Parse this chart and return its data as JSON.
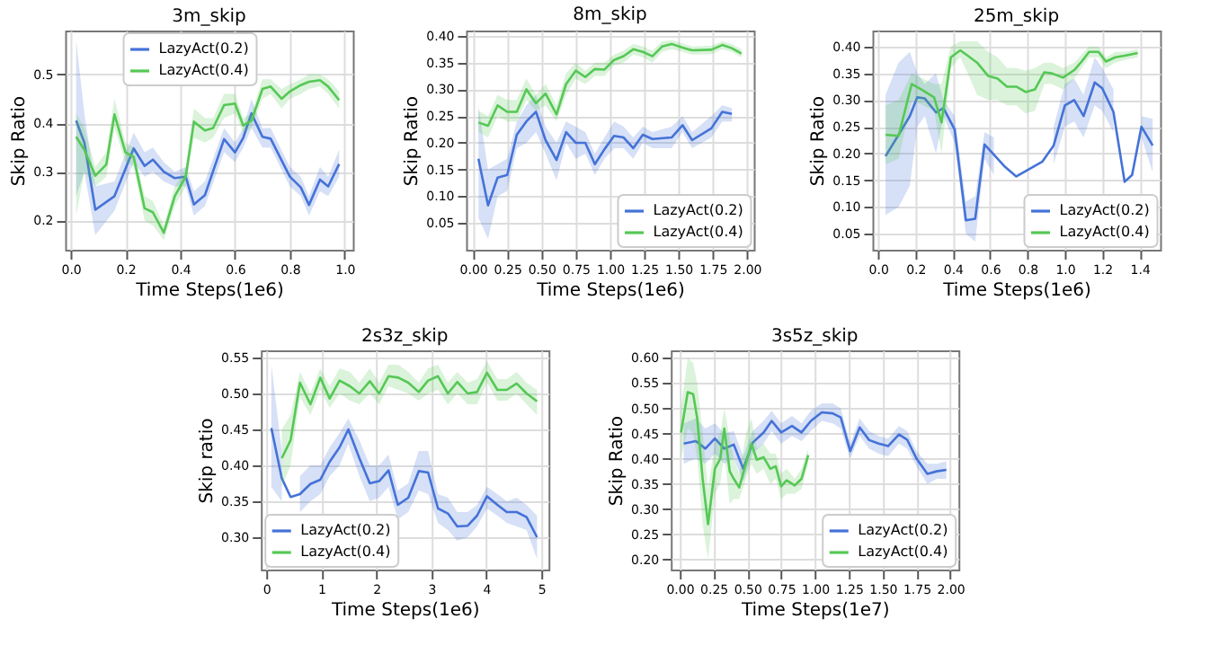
{
  "chart_data": [
    {
      "type": "line",
      "title": "3m_skip",
      "xlabel": "Time Steps(1e6)",
      "ylabel": "Skip Ratio",
      "xlim": [
        -0.02,
        1.03
      ],
      "ylim": [
        0.14,
        0.59
      ],
      "xticks": [
        {
          "value": 0,
          "label": "0.0"
        },
        0.2,
        0.4,
        0.6,
        0.8,
        {
          "value": 1,
          "label": "1.0"
        }
      ],
      "yticks": [
        0.2,
        0.3,
        0.4,
        0.5
      ],
      "grid": true,
      "legend": "top",
      "series": [
        {
          "name": "LazyAct(0.2)",
          "color": "#4472d8",
          "x": [
            0.02,
            0.05,
            0.09,
            0.16,
            0.23,
            0.27,
            0.3,
            0.34,
            0.38,
            0.42,
            0.45,
            0.49,
            0.56,
            0.6,
            0.63,
            0.66,
            0.7,
            0.73,
            0.8,
            0.84,
            0.87,
            0.91,
            0.94,
            0.98
          ],
          "values": [
            0.405,
            0.36,
            0.222,
            0.25,
            0.348,
            0.312,
            0.325,
            0.3,
            0.287,
            0.29,
            0.233,
            0.252,
            0.367,
            0.34,
            0.37,
            0.42,
            0.372,
            0.368,
            0.29,
            0.268,
            0.232,
            0.284,
            0.27,
            0.316
          ],
          "lower": [
            0.25,
            0.3,
            0.17,
            0.22,
            0.32,
            0.29,
            0.3,
            0.28,
            0.27,
            0.27,
            0.21,
            0.23,
            0.34,
            0.32,
            0.35,
            0.39,
            0.35,
            0.35,
            0.27,
            0.25,
            0.21,
            0.26,
            0.25,
            0.29
          ],
          "upper": [
            0.57,
            0.42,
            0.27,
            0.28,
            0.38,
            0.34,
            0.35,
            0.32,
            0.3,
            0.31,
            0.26,
            0.28,
            0.39,
            0.36,
            0.39,
            0.45,
            0.39,
            0.39,
            0.31,
            0.29,
            0.25,
            0.31,
            0.29,
            0.345
          ]
        },
        {
          "name": "LazyAct(0.4)",
          "color": "#55c855",
          "x": [
            0.02,
            0.05,
            0.09,
            0.13,
            0.16,
            0.2,
            0.23,
            0.27,
            0.3,
            0.34,
            0.38,
            0.42,
            0.45,
            0.49,
            0.52,
            0.56,
            0.6,
            0.63,
            0.66,
            0.7,
            0.73,
            0.77,
            0.8,
            0.84,
            0.87,
            0.91,
            0.94,
            0.98
          ],
          "values": [
            0.372,
            0.345,
            0.292,
            0.315,
            0.418,
            0.34,
            0.33,
            0.225,
            0.217,
            0.175,
            0.25,
            0.29,
            0.403,
            0.385,
            0.39,
            0.437,
            0.44,
            0.395,
            0.405,
            0.47,
            0.475,
            0.45,
            0.465,
            0.478,
            0.485,
            0.488,
            0.475,
            0.447
          ],
          "lower": [
            0.21,
            0.3,
            0.27,
            0.29,
            0.39,
            0.32,
            0.31,
            0.2,
            0.19,
            0.16,
            0.23,
            0.27,
            0.37,
            0.36,
            0.37,
            0.41,
            0.42,
            0.38,
            0.39,
            0.45,
            0.46,
            0.43,
            0.45,
            0.46,
            0.47,
            0.475,
            0.46,
            0.43
          ],
          "upper": [
            0.42,
            0.39,
            0.31,
            0.34,
            0.45,
            0.36,
            0.35,
            0.25,
            0.24,
            0.19,
            0.27,
            0.31,
            0.43,
            0.41,
            0.41,
            0.46,
            0.46,
            0.41,
            0.42,
            0.49,
            0.49,
            0.47,
            0.48,
            0.49,
            0.5,
            0.5,
            0.49,
            0.465
          ]
        }
      ]
    },
    {
      "type": "line",
      "title": "8m_skip",
      "xlabel": "Time Steps(1e6)",
      "ylabel": "Skip Ratio",
      "xlim": [
        -0.05,
        2.05
      ],
      "ylim": [
        0.0,
        0.41
      ],
      "xticks": [
        {
          "value": 0,
          "label": "0.00"
        },
        0.25,
        {
          "value": 0.5,
          "label": "0.50"
        },
        0.75,
        {
          "value": 1,
          "label": "1.00"
        },
        1.25,
        {
          "value": 1.5,
          "label": "1.50"
        },
        1.75,
        {
          "value": 2,
          "label": "2.00"
        }
      ],
      "yticks": [
        0.05,
        {
          "value": 0.1,
          "label": "0.10"
        },
        0.15,
        {
          "value": 0.2,
          "label": "0.20"
        },
        0.25,
        {
          "value": 0.3,
          "label": "0.30"
        },
        0.35,
        {
          "value": 0.4,
          "label": "0.40"
        }
      ],
      "grid": true,
      "legend": "bottom right",
      "series": [
        {
          "name": "LazyAct(0.2)",
          "color": "#4472d8",
          "x": [
            0.04,
            0.11,
            0.18,
            0.25,
            0.32,
            0.39,
            0.46,
            0.53,
            0.61,
            0.68,
            0.75,
            0.82,
            0.89,
            0.96,
            1.03,
            1.1,
            1.17,
            1.24,
            1.31,
            1.45,
            1.53,
            1.6,
            1.74,
            1.82,
            1.89
          ],
          "values": [
            0.17,
            0.083,
            0.135,
            0.14,
            0.215,
            0.24,
            0.258,
            0.205,
            0.168,
            0.22,
            0.2,
            0.2,
            0.16,
            0.188,
            0.213,
            0.21,
            0.19,
            0.215,
            0.207,
            0.21,
            0.233,
            0.205,
            0.227,
            0.258,
            0.254
          ],
          "lower": [
            0.06,
            0.02,
            0.1,
            0.11,
            0.19,
            0.2,
            0.22,
            0.18,
            0.13,
            0.2,
            0.17,
            0.18,
            0.14,
            0.17,
            0.19,
            0.19,
            0.17,
            0.2,
            0.19,
            0.19,
            0.22,
            0.19,
            0.21,
            0.24,
            0.24
          ],
          "upper": [
            0.27,
            0.15,
            0.16,
            0.17,
            0.24,
            0.27,
            0.29,
            0.23,
            0.2,
            0.24,
            0.23,
            0.22,
            0.18,
            0.21,
            0.24,
            0.23,
            0.21,
            0.23,
            0.22,
            0.23,
            0.25,
            0.22,
            0.25,
            0.27,
            0.265
          ]
        },
        {
          "name": "LazyAct(0.4)",
          "color": "#55c855",
          "x": [
            0.04,
            0.11,
            0.18,
            0.25,
            0.32,
            0.39,
            0.46,
            0.53,
            0.61,
            0.68,
            0.75,
            0.82,
            0.89,
            0.96,
            1.03,
            1.1,
            1.17,
            1.24,
            1.31,
            1.38,
            1.45,
            1.53,
            1.6,
            1.74,
            1.82,
            1.89,
            1.96
          ],
          "values": [
            0.238,
            0.232,
            0.27,
            0.258,
            0.258,
            0.3,
            0.274,
            0.292,
            0.253,
            0.31,
            0.335,
            0.323,
            0.338,
            0.337,
            0.355,
            0.362,
            0.375,
            0.37,
            0.362,
            0.38,
            0.385,
            0.378,
            0.373,
            0.374,
            0.383,
            0.377,
            0.367
          ],
          "lower": [
            0.22,
            0.21,
            0.25,
            0.24,
            0.24,
            0.28,
            0.26,
            0.27,
            0.24,
            0.29,
            0.32,
            0.31,
            0.325,
            0.325,
            0.345,
            0.35,
            0.365,
            0.36,
            0.35,
            0.37,
            0.375,
            0.37,
            0.365,
            0.366,
            0.375,
            0.37,
            0.36
          ],
          "upper": [
            0.26,
            0.25,
            0.29,
            0.28,
            0.28,
            0.32,
            0.29,
            0.31,
            0.27,
            0.33,
            0.35,
            0.335,
            0.35,
            0.35,
            0.365,
            0.372,
            0.385,
            0.38,
            0.372,
            0.39,
            0.392,
            0.386,
            0.38,
            0.382,
            0.39,
            0.385,
            0.375
          ]
        }
      ]
    },
    {
      "type": "line",
      "title": "25m_skip",
      "xlabel": "Time Steps(1e6)",
      "ylabel": "Skip Ratio",
      "xlim": [
        -0.03,
        1.51
      ],
      "ylim": [
        0.02,
        0.43
      ],
      "xticks": [
        {
          "value": 0,
          "label": "0.0"
        },
        0.2,
        0.4,
        0.6,
        0.8,
        {
          "value": 1,
          "label": "1.0"
        },
        1.2,
        1.4
      ],
      "yticks": [
        0.05,
        {
          "value": 0.1,
          "label": "0.10"
        },
        0.15,
        {
          "value": 0.2,
          "label": "0.20"
        },
        0.25,
        {
          "value": 0.3,
          "label": "0.30"
        },
        0.35,
        {
          "value": 0.4,
          "label": "0.40"
        }
      ],
      "grid": true,
      "legend": "bottom right",
      "series": [
        {
          "name": "LazyAct(0.2)",
          "color": "#4472d8",
          "x": [
            0.04,
            0.11,
            0.17,
            0.21,
            0.25,
            0.31,
            0.35,
            0.41,
            0.47,
            0.52,
            0.57,
            0.62,
            0.68,
            0.74,
            0.88,
            0.94,
            1.0,
            1.05,
            1.1,
            1.16,
            1.2,
            1.26,
            1.32,
            1.36,
            1.41,
            1.47
          ],
          "values": [
            0.195,
            0.235,
            0.27,
            0.305,
            0.303,
            0.277,
            0.285,
            0.245,
            0.075,
            0.078,
            0.217,
            0.198,
            0.175,
            0.157,
            0.185,
            0.215,
            0.29,
            0.3,
            0.27,
            0.333,
            0.322,
            0.278,
            0.147,
            0.16,
            0.25,
            0.215
          ],
          "lower": [
            0.085,
            0.1,
            0.14,
            0.25,
            0.27,
            0.2,
            0.27,
            0.22,
            0.05,
            0.035,
            0.19,
            0.16,
            null,
            null,
            null,
            0.18,
            0.25,
            0.26,
            0.23,
            0.29,
            0.28,
            0.24,
            null,
            null,
            0.23,
            0.165
          ],
          "upper": [
            0.31,
            0.37,
            0.39,
            0.35,
            0.33,
            0.35,
            0.3,
            0.27,
            0.11,
            0.12,
            0.24,
            0.23,
            null,
            null,
            null,
            0.25,
            0.33,
            0.34,
            0.31,
            0.38,
            0.36,
            0.32,
            null,
            null,
            0.27,
            0.265
          ]
        },
        {
          "name": "LazyAct(0.4)",
          "color": "#55c855",
          "x": [
            0.04,
            0.11,
            0.18,
            0.24,
            0.3,
            0.34,
            0.39,
            0.44,
            0.48,
            0.53,
            0.59,
            0.64,
            0.69,
            0.74,
            0.79,
            0.84,
            0.89,
            0.93,
            0.99,
            1.05,
            1.09,
            1.13,
            1.18,
            1.22,
            1.27,
            1.32,
            1.39
          ],
          "values": [
            0.235,
            0.233,
            0.33,
            0.318,
            0.305,
            0.258,
            0.38,
            0.393,
            0.383,
            0.37,
            0.345,
            0.34,
            0.325,
            0.325,
            0.315,
            0.32,
            0.352,
            0.35,
            0.342,
            0.356,
            0.372,
            0.39,
            0.39,
            0.372,
            0.38,
            0.383,
            0.388
          ],
          "lower": [
            0.18,
            0.19,
            0.3,
            0.29,
            0.28,
            0.2,
            0.36,
            0.38,
            0.35,
            0.31,
            0.3,
            0.3,
            0.29,
            0.29,
            0.275,
            0.28,
            0.33,
            0.33,
            0.32,
            0.34,
            0.36,
            0.38,
            0.38,
            0.36,
            0.37,
            0.375,
            0.38
          ],
          "upper": [
            0.29,
            0.3,
            0.35,
            0.34,
            0.33,
            0.33,
            0.4,
            0.41,
            0.41,
            0.41,
            0.39,
            0.38,
            0.36,
            0.36,
            0.355,
            0.36,
            0.37,
            0.37,
            0.36,
            0.37,
            0.385,
            0.4,
            0.4,
            0.38,
            0.39,
            0.39,
            0.395
          ]
        }
      ]
    },
    {
      "type": "line",
      "title": "2s3z_skip",
      "xlabel": "Time Steps(1e6)",
      "ylabel": "Skip ratio",
      "xlim": [
        -0.1,
        5.13
      ],
      "ylim": [
        0.255,
        0.56
      ],
      "xticks": [
        0,
        1,
        2,
        3,
        4,
        5
      ],
      "yticks": [
        {
          "value": 0.3,
          "label": "0.30"
        },
        0.35,
        {
          "value": 0.4,
          "label": "0.40"
        },
        0.45,
        {
          "value": 0.5,
          "label": "0.50"
        },
        0.55
      ],
      "grid": true,
      "legend": "bottom left",
      "series": [
        {
          "name": "LazyAct(0.2)",
          "color": "#4472d8",
          "x": [
            0.09,
            0.28,
            0.44,
            0.61,
            0.8,
            0.98,
            1.15,
            1.33,
            1.49,
            1.69,
            1.88,
            2.05,
            2.22,
            2.39,
            2.58,
            2.77,
            2.94,
            3.12,
            3.3,
            3.47,
            3.66,
            3.83,
            4.01,
            4.2,
            4.37,
            4.55,
            4.73,
            4.92
          ],
          "values": [
            0.452,
            0.382,
            0.356,
            0.36,
            0.374,
            0.38,
            0.405,
            0.425,
            0.45,
            0.41,
            0.375,
            0.378,
            0.393,
            0.345,
            0.355,
            0.392,
            0.39,
            0.34,
            0.333,
            0.315,
            0.316,
            0.33,
            0.357,
            0.345,
            0.335,
            0.335,
            0.328,
            0.3
          ],
          "lower": [
            0.37,
            0.35,
            null,
            0.335,
            0.35,
            0.36,
            0.385,
            0.4,
            0.43,
            0.385,
            0.35,
            0.355,
            0.37,
            0.325,
            0.335,
            0.365,
            0.36,
            0.32,
            0.31,
            0.295,
            0.3,
            0.315,
            0.34,
            0.33,
            0.32,
            0.315,
            0.31,
            0.27
          ],
          "upper": [
            0.54,
            0.42,
            null,
            0.385,
            0.4,
            0.4,
            0.425,
            0.445,
            0.465,
            0.435,
            0.4,
            0.4,
            0.415,
            0.365,
            0.375,
            0.42,
            0.42,
            0.36,
            0.355,
            0.335,
            0.335,
            0.345,
            0.37,
            0.36,
            0.35,
            0.355,
            0.345,
            0.33
          ]
        },
        {
          "name": "LazyAct(0.4)",
          "color": "#55c855",
          "x": [
            0.28,
            0.44,
            0.61,
            0.8,
            0.98,
            1.15,
            1.33,
            1.52,
            1.69,
            1.88,
            2.05,
            2.22,
            2.4,
            2.58,
            2.77,
            2.94,
            3.12,
            3.3,
            3.47,
            3.66,
            3.83,
            4.01,
            4.2,
            4.37,
            4.55,
            4.73,
            4.92
          ],
          "values": [
            0.41,
            0.435,
            0.515,
            0.485,
            0.522,
            0.493,
            0.518,
            0.51,
            0.5,
            0.517,
            0.5,
            0.524,
            0.522,
            0.515,
            0.502,
            0.518,
            0.524,
            0.5,
            0.516,
            0.5,
            0.502,
            0.529,
            0.505,
            0.505,
            0.514,
            0.5,
            0.489
          ],
          "lower": [
            0.37,
            0.4,
            0.495,
            0.47,
            0.505,
            0.48,
            0.5,
            0.49,
            0.485,
            0.5,
            0.485,
            0.51,
            0.505,
            0.5,
            0.49,
            0.5,
            0.505,
            0.485,
            0.5,
            0.485,
            0.485,
            0.515,
            0.49,
            0.49,
            0.5,
            0.485,
            0.47
          ],
          "upper": [
            0.45,
            0.47,
            0.53,
            0.5,
            0.535,
            0.51,
            0.535,
            0.53,
            0.515,
            0.535,
            0.515,
            0.54,
            0.54,
            0.53,
            0.515,
            0.535,
            0.54,
            0.515,
            0.53,
            0.515,
            0.52,
            0.545,
            0.52,
            0.52,
            0.53,
            0.515,
            0.505
          ]
        }
      ]
    },
    {
      "type": "line",
      "title": "3s5z_skip",
      "xlabel": "Time Steps(1e7)",
      "ylabel": "Skip Ratio",
      "xlim": [
        -0.065,
        2.06
      ],
      "ylim": [
        0.18,
        0.615
      ],
      "xticks": [
        {
          "value": 0,
          "label": "0.00"
        },
        0.25,
        {
          "value": 0.5,
          "label": "0.50"
        },
        0.75,
        {
          "value": 1,
          "label": "1.00"
        },
        1.25,
        {
          "value": 1.5,
          "label": "1.50"
        },
        1.75,
        {
          "value": 2,
          "label": "2.00"
        }
      ],
      "yticks": [
        {
          "value": 0.2,
          "label": "0.20"
        },
        0.25,
        {
          "value": 0.3,
          "label": "0.30"
        },
        0.35,
        {
          "value": 0.4,
          "label": "0.40"
        },
        0.45,
        {
          "value": 0.5,
          "label": "0.50"
        },
        0.55,
        {
          "value": 0.6,
          "label": "0.60"
        }
      ],
      "grid": true,
      "legend": "bottom right",
      "series": [
        {
          "name": "LazyAct(0.2)",
          "color": "#4472d8",
          "x": [
            0.03,
            0.12,
            0.19,
            0.26,
            0.33,
            0.4,
            0.47,
            0.54,
            0.62,
            0.68,
            0.75,
            0.83,
            0.9,
            0.97,
            1.05,
            1.13,
            1.19,
            1.26,
            1.33,
            1.4,
            1.47,
            1.54,
            1.62,
            1.68,
            1.75,
            1.83,
            1.9,
            1.97
          ],
          "values": [
            0.43,
            0.435,
            0.42,
            0.44,
            0.42,
            0.428,
            0.38,
            0.432,
            0.452,
            0.475,
            0.452,
            0.465,
            0.452,
            0.475,
            0.492,
            0.49,
            0.482,
            0.415,
            0.462,
            0.437,
            0.43,
            0.425,
            0.448,
            0.438,
            0.4,
            0.37,
            0.375,
            0.378
          ],
          "lower": [
            0.39,
            0.4,
            0.39,
            0.41,
            0.39,
            0.4,
            0.355,
            0.41,
            0.43,
            0.455,
            0.43,
            0.445,
            0.435,
            0.455,
            0.475,
            0.47,
            0.46,
            0.4,
            0.445,
            0.42,
            0.41,
            0.405,
            0.43,
            0.42,
            0.385,
            0.35,
            0.36,
            0.36
          ],
          "upper": [
            0.47,
            0.48,
            0.46,
            0.47,
            0.45,
            0.455,
            0.405,
            0.455,
            0.475,
            0.495,
            0.47,
            0.485,
            0.47,
            0.495,
            0.51,
            0.51,
            0.5,
            0.43,
            0.48,
            0.455,
            0.445,
            0.44,
            0.465,
            0.455,
            0.415,
            0.39,
            0.39,
            0.395
          ]
        },
        {
          "name": "LazyAct(0.4)",
          "color": "#55c855",
          "x": [
            0.01,
            0.06,
            0.1,
            0.13,
            0.17,
            0.21,
            0.26,
            0.3,
            0.33,
            0.37,
            0.4,
            0.44,
            0.49,
            0.53,
            0.57,
            0.62,
            0.67,
            0.71,
            0.75,
            0.79,
            0.85,
            0.9,
            0.95
          ],
          "values": [
            0.452,
            0.532,
            0.528,
            0.48,
            0.36,
            0.27,
            0.38,
            0.4,
            0.46,
            0.375,
            0.36,
            0.343,
            0.39,
            0.43,
            0.398,
            0.403,
            0.38,
            0.385,
            0.345,
            0.357,
            0.347,
            0.36,
            0.407
          ],
          "lower": [
            0.4,
            0.46,
            0.45,
            0.4,
            0.27,
            0.2,
            0.33,
            0.35,
            0.41,
            0.31,
            0.32,
            0.32,
            0.36,
            0.39,
            0.37,
            0.38,
            0.35,
            0.36,
            0.32,
            0.33,
            0.33,
            0.34,
            0.39
          ],
          "upper": [
            0.5,
            0.6,
            0.59,
            0.55,
            0.45,
            0.34,
            0.43,
            0.45,
            0.5,
            0.44,
            0.4,
            0.37,
            0.45,
            0.48,
            0.42,
            0.43,
            0.41,
            0.41,
            0.37,
            0.38,
            0.36,
            0.38,
            0.42
          ]
        }
      ]
    }
  ]
}
